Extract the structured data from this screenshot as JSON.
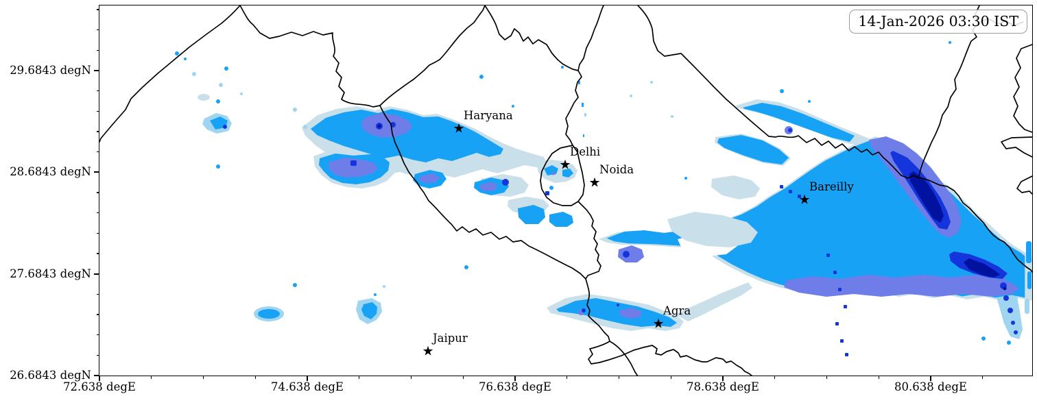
{
  "figure": {
    "timestamp": "14-Jan-2026 03:30 IST",
    "x_axis": {
      "tick_labels": [
        "72.638 degE",
        "74.638 degE",
        "76.638 degE",
        "78.638 degE",
        "80.638 degE"
      ]
    },
    "y_axis": {
      "tick_labels": [
        "29.6843 degN",
        "28.6843 degN",
        "27.6843 degN",
        "26.6843 degN"
      ]
    },
    "cities": [
      {
        "name": "Haryana"
      },
      {
        "name": "Delhi"
      },
      {
        "name": "Noida"
      },
      {
        "name": "Bareilly"
      },
      {
        "name": "Agra"
      },
      {
        "name": "Jaipur"
      }
    ],
    "colors": {
      "boundary_line": "#000000",
      "background": "#ffffff",
      "precip_levels_low_to_high": [
        "#C9DFE9",
        "#9FD5F0",
        "#17A2F5",
        "#6F7DE8",
        "#1535DC",
        "#00129E"
      ]
    },
    "marker_glyph": "★"
  }
}
